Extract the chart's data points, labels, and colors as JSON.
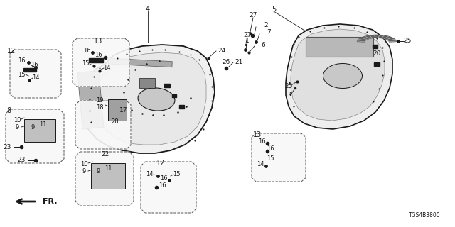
{
  "bg_color": "#ffffff",
  "line_color": "#1a1a1a",
  "diagram_code": "TGS4B3800",
  "fig_w": 6.4,
  "fig_h": 3.2,
  "dpi": 100
}
